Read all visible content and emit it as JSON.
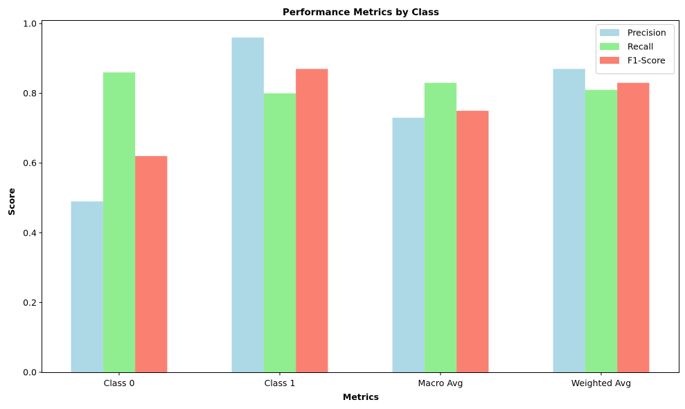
{
  "chart_data": {
    "type": "bar",
    "title": "Performance Metrics by Class",
    "xlabel": "Metrics",
    "ylabel": "Score",
    "categories": [
      "Class 0",
      "Class 1",
      "Macro Avg",
      "Weighted Avg"
    ],
    "series": [
      {
        "name": "Precision",
        "color": "#add8e6",
        "values": [
          0.49,
          0.96,
          0.73,
          0.87
        ]
      },
      {
        "name": "Recall",
        "color": "#90ee90",
        "values": [
          0.86,
          0.8,
          0.83,
          0.81
        ]
      },
      {
        "name": "F1-Score",
        "color": "#fa8072",
        "values": [
          0.62,
          0.87,
          0.75,
          0.83
        ]
      }
    ],
    "ylim": [
      0,
      1.008
    ],
    "yticks": [
      "0.0",
      "0.2",
      "0.4",
      "0.6",
      "0.8",
      "1.0"
    ],
    "grid": false,
    "legend_position": "top-right"
  }
}
